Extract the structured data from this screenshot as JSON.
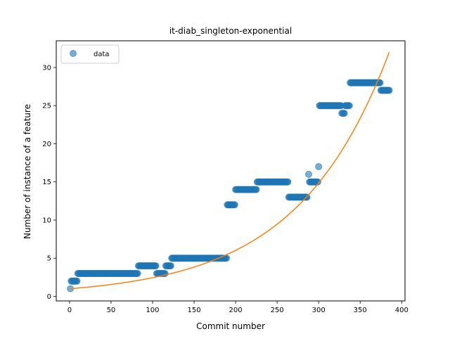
{
  "chart_data": {
    "type": "scatter",
    "title": "it-diab_singleton-exponential",
    "xlabel": "Commit number",
    "ylabel": "Number of instance of a feature",
    "xlim": [
      -16,
      404
    ],
    "ylim": [
      -0.6,
      33.5
    ],
    "xticks": [
      0,
      50,
      100,
      150,
      200,
      250,
      300,
      350,
      400
    ],
    "yticks": [
      0,
      5,
      10,
      15,
      20,
      25,
      30
    ],
    "grid": false,
    "legend": {
      "placement": "top-left",
      "entries": [
        {
          "label": "data",
          "marker": "circle",
          "color": "#1f77b4"
        }
      ]
    },
    "series": [
      {
        "name": "data",
        "kind": "scatter",
        "color": "#1f77b4",
        "segments": [
          {
            "x_start": 1,
            "x_end": 1,
            "y": 1
          },
          {
            "x_start": 2,
            "x_end": 9,
            "y": 2
          },
          {
            "x_start": 10,
            "x_end": 82,
            "y": 3
          },
          {
            "x_start": 83,
            "x_end": 104,
            "y": 4
          },
          {
            "x_start": 105,
            "x_end": 115,
            "y": 3
          },
          {
            "x_start": 116,
            "x_end": 122,
            "y": 4
          },
          {
            "x_start": 123,
            "x_end": 189,
            "y": 5
          },
          {
            "x_start": 190,
            "x_end": 199,
            "y": 12
          },
          {
            "x_start": 200,
            "x_end": 225,
            "y": 14
          },
          {
            "x_start": 226,
            "x_end": 263,
            "y": 15
          },
          {
            "x_start": 264,
            "x_end": 286,
            "y": 13
          },
          {
            "x_start": 288,
            "x_end": 288,
            "y": 16
          },
          {
            "x_start": 289,
            "x_end": 299,
            "y": 15
          },
          {
            "x_start": 300,
            "x_end": 300,
            "y": 17
          },
          {
            "x_start": 301,
            "x_end": 327,
            "y": 25
          },
          {
            "x_start": 328,
            "x_end": 331,
            "y": 24
          },
          {
            "x_start": 332,
            "x_end": 337,
            "y": 25
          },
          {
            "x_start": 338,
            "x_end": 374,
            "y": 28
          },
          {
            "x_start": 375,
            "x_end": 385,
            "y": 27
          }
        ]
      },
      {
        "kind": "line",
        "model": "exponential",
        "color": "#ff7f0e",
        "x_range": [
          1,
          385
        ],
        "y_start": 1.0,
        "y_end": 32.0
      }
    ]
  }
}
